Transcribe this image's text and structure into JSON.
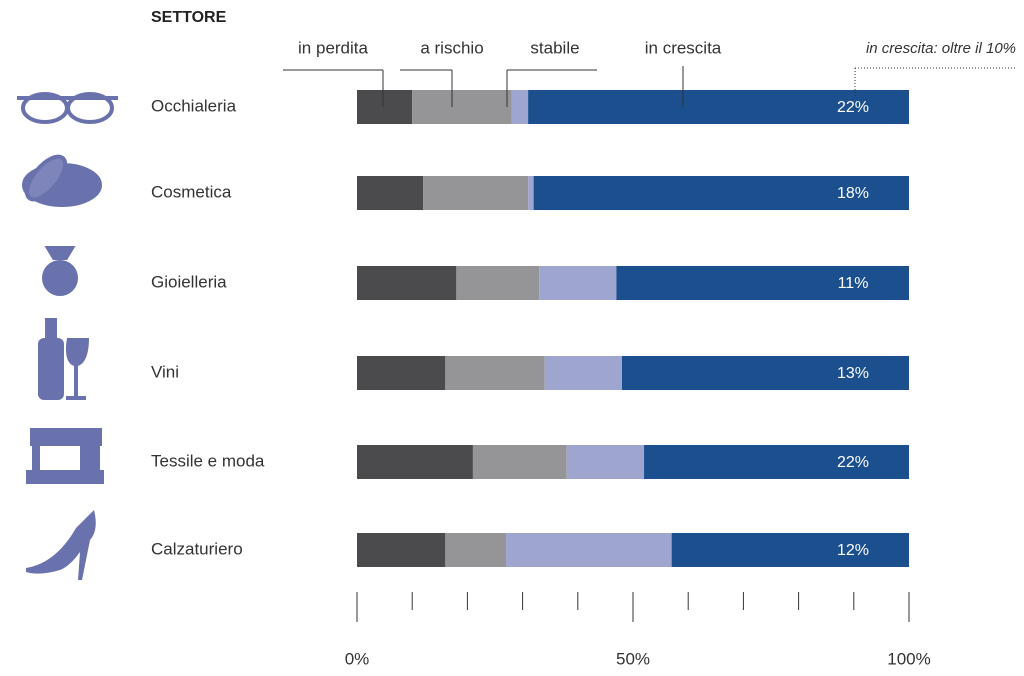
{
  "chart_data": {
    "type": "stacked-bar-horizontal",
    "title": "SETTORE",
    "categories": [
      "Occhialeria",
      "Cosmetica",
      "Gioielleria",
      "Vini",
      "Tessile e moda",
      "Calzaturiero"
    ],
    "series": [
      {
        "name": "in perdita",
        "color": "#4b4b4d",
        "values": [
          10,
          12,
          18,
          16,
          21,
          16
        ]
      },
      {
        "name": "a rischio",
        "color": "#959597",
        "values": [
          18,
          19,
          15,
          18,
          17,
          11
        ]
      },
      {
        "name": "stabile",
        "color": "#9ea5cf",
        "values": [
          3,
          1,
          14,
          14,
          14,
          30
        ]
      },
      {
        "name": "in crescita",
        "color": "#1b4f8e",
        "values": [
          69,
          68,
          53,
          52,
          48,
          43
        ]
      }
    ],
    "highlight": {
      "name": "in crescita: oltre il 10%",
      "values": [
        22,
        18,
        11,
        13,
        22,
        12
      ],
      "value_labels": [
        "22%",
        "18%",
        "11%",
        "13%",
        "22%",
        "12%"
      ]
    },
    "xlim": [
      0,
      100
    ],
    "xticks": [
      {
        "value": 0,
        "label": "0%"
      },
      {
        "value": 50,
        "label": "50%"
      },
      {
        "value": 100,
        "label": "100%"
      }
    ],
    "xminor_ticks": [
      10,
      20,
      30,
      40,
      60,
      70,
      80,
      90
    ]
  }
}
